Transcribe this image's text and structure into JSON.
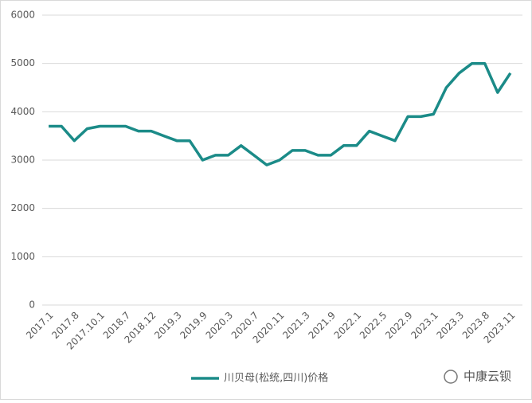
{
  "chart_data": {
    "type": "line",
    "categories": [
      "2017.1",
      null,
      "2017.8",
      null,
      "2017.10.1",
      null,
      "2018.7",
      null,
      "2018.12",
      null,
      "2019.3",
      null,
      "2019.9",
      null,
      "2020.3",
      null,
      "2020.7",
      null,
      "2020.11",
      null,
      "2021.3",
      null,
      "2021.9",
      null,
      "2022.1",
      null,
      "2022.5",
      null,
      "2022.9",
      null,
      "2023.1",
      null,
      "2023.3",
      null,
      "2023.8",
      null,
      "2023.11"
    ],
    "series": [
      {
        "name": "川贝母(松统,四川)价格",
        "color": "#1b8b88",
        "values": [
          3700,
          3700,
          3400,
          3650,
          3700,
          3700,
          3700,
          3600,
          3600,
          3500,
          3400,
          3400,
          3000,
          3100,
          3100,
          3300,
          3100,
          2900,
          3000,
          3200,
          3200,
          3100,
          3100,
          3300,
          3300,
          3600,
          3500,
          3400,
          3900,
          3900,
          3950,
          4500,
          4800,
          5000,
          5000,
          4400,
          4800
        ]
      }
    ],
    "ylim": [
      0,
      6000
    ],
    "yticks": [
      0,
      1000,
      2000,
      3000,
      4000,
      5000,
      6000
    ],
    "grid": true,
    "legend": "bottom",
    "watermark": "中康云钡"
  }
}
